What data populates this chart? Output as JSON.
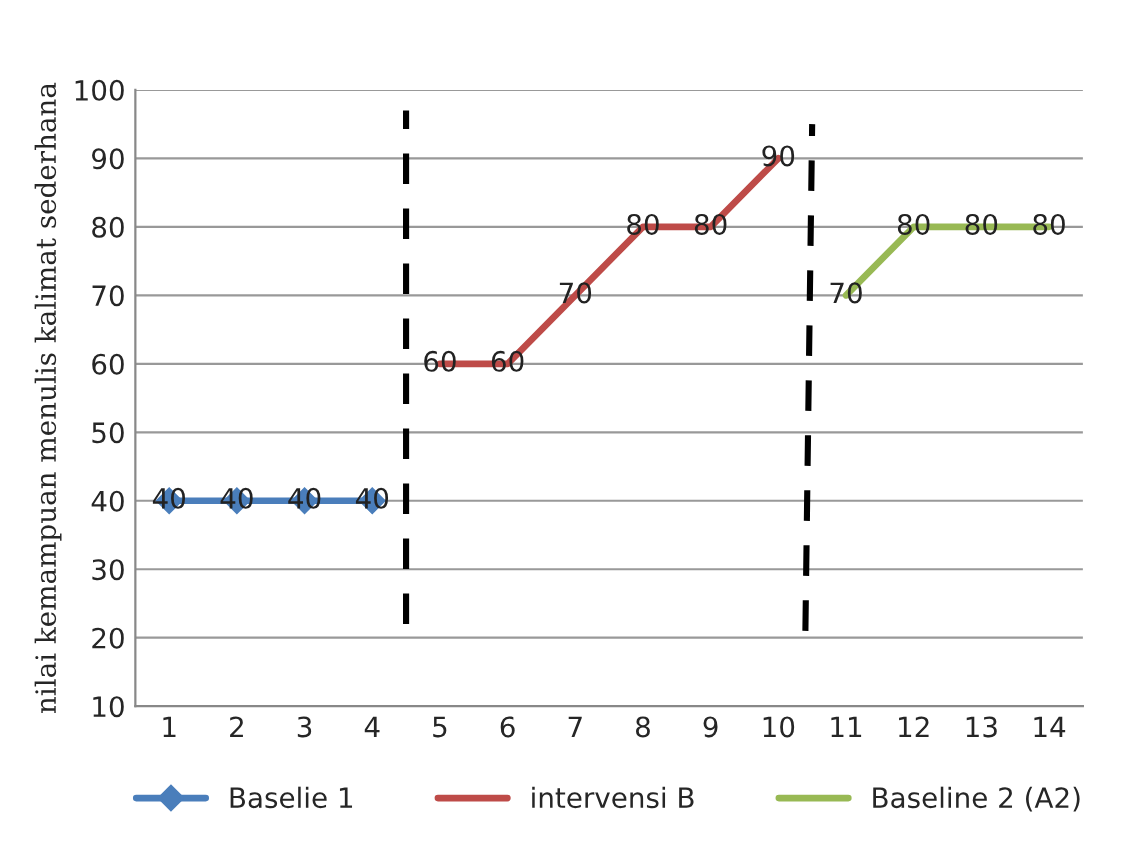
{
  "chart_data": {
    "type": "line",
    "ylabel": "nilai kemampuan menulis kalimat sederhana",
    "x": [
      1,
      2,
      3,
      4,
      5,
      6,
      7,
      8,
      9,
      10,
      11,
      12,
      13,
      14
    ],
    "xlim": [
      0.5,
      14.5
    ],
    "xticks": [
      1,
      2,
      3,
      4,
      5,
      6,
      7,
      8,
      9,
      10,
      11,
      12,
      13,
      14
    ],
    "ylim": [
      10,
      100
    ],
    "yticks": [
      10,
      20,
      30,
      40,
      50,
      60,
      70,
      80,
      90,
      100
    ],
    "grid": "y",
    "legend": "bottom",
    "series": [
      {
        "name": "Baselie 1",
        "color": "#4a7ebb",
        "marker": "diamond",
        "values": [
          40,
          40,
          40,
          40,
          null,
          null,
          null,
          null,
          null,
          null,
          null,
          null,
          null,
          null
        ],
        "value_labels": [
          "40",
          "40",
          "40",
          "40",
          null,
          null,
          null,
          null,
          null,
          null,
          null,
          null,
          null,
          null
        ]
      },
      {
        "name": "intervensi B",
        "color": "#be4b48",
        "values": [
          null,
          null,
          null,
          null,
          60,
          60,
          70,
          80,
          80,
          90,
          null,
          null,
          null,
          null
        ],
        "value_labels": [
          null,
          null,
          null,
          null,
          "60",
          "60",
          "70",
          "80",
          "80",
          "90",
          null,
          null,
          null,
          null
        ]
      },
      {
        "name": "Baseline 2 (A2)",
        "color": "#98b954",
        "values": [
          null,
          null,
          null,
          null,
          null,
          null,
          null,
          null,
          null,
          null,
          70,
          80,
          80,
          80
        ],
        "value_labels": [
          null,
          null,
          null,
          null,
          null,
          null,
          null,
          null,
          null,
          null,
          "70",
          "80",
          "80",
          "80"
        ]
      },
      {
        "color": "#000000",
        "line_style": "dashed",
        "x": [
          4.5,
          4.5
        ],
        "values": [
          22,
          97
        ]
      },
      {
        "color": "#000000",
        "line_style": "dashed",
        "x": [
          10.4,
          10.5
        ],
        "values": [
          21,
          95
        ]
      }
    ]
  }
}
